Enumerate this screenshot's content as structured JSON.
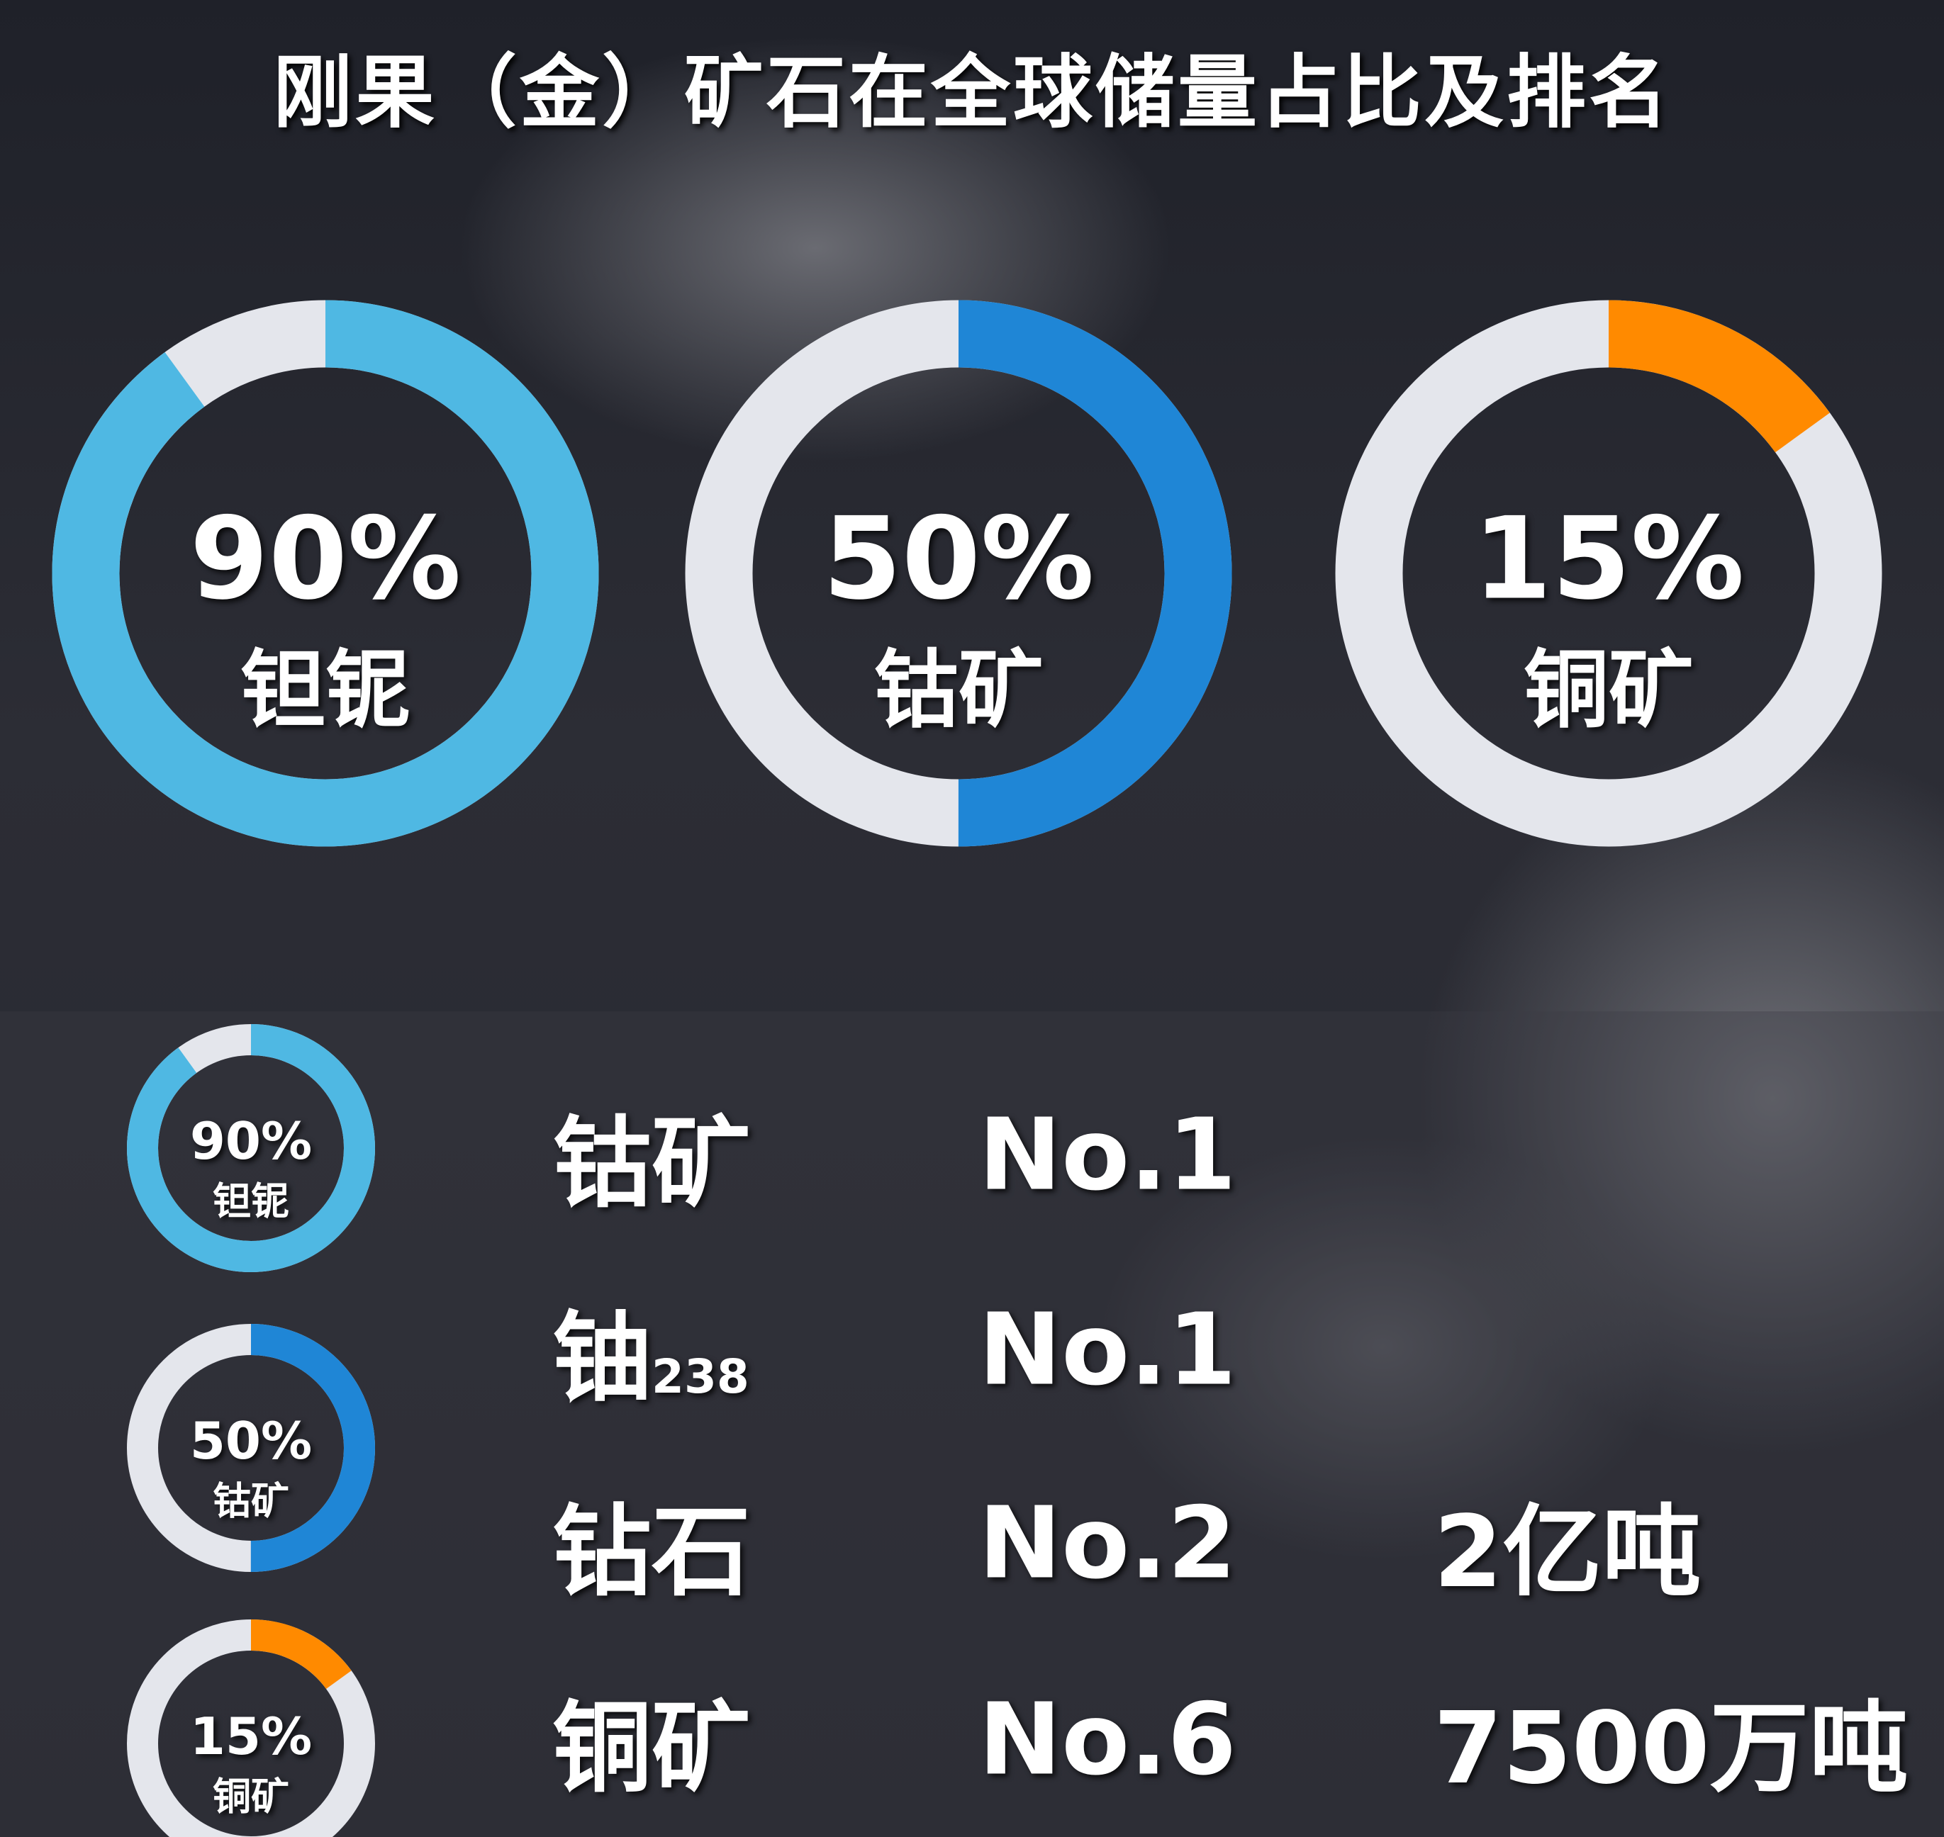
{
  "title": "刚果（金）矿石在全球储量占比及排名",
  "colors": {
    "ring_bg": "#e4e6ec",
    "tantalum": "#4fb8e3",
    "cobalt": "#1f86d6",
    "copper": "#ff8a00"
  },
  "chart_data": {
    "type": "donut",
    "title": "刚果（金）矿石在全球储量占比及排名",
    "items": [
      {
        "label": "钽铌",
        "value": 90,
        "value_label": "90%",
        "color": "#4fb8e3"
      },
      {
        "label": "钴矿",
        "value": 50,
        "value_label": "50%",
        "color": "#1f86d6"
      },
      {
        "label": "铜矿",
        "value": 15,
        "value_label": "15%",
        "color": "#ff8a00"
      }
    ]
  },
  "ranking": {
    "rows": [
      {
        "name": "钴矿",
        "sub": "",
        "rank": "No.1",
        "amount": ""
      },
      {
        "name": "铀",
        "sub": "238",
        "rank": "No.1",
        "amount": ""
      },
      {
        "name": "钻石",
        "sub": "",
        "rank": "No.2",
        "amount": "2亿吨"
      },
      {
        "name": "铜矿",
        "sub": "",
        "rank": "No.6",
        "amount": "7500万吨"
      }
    ]
  }
}
